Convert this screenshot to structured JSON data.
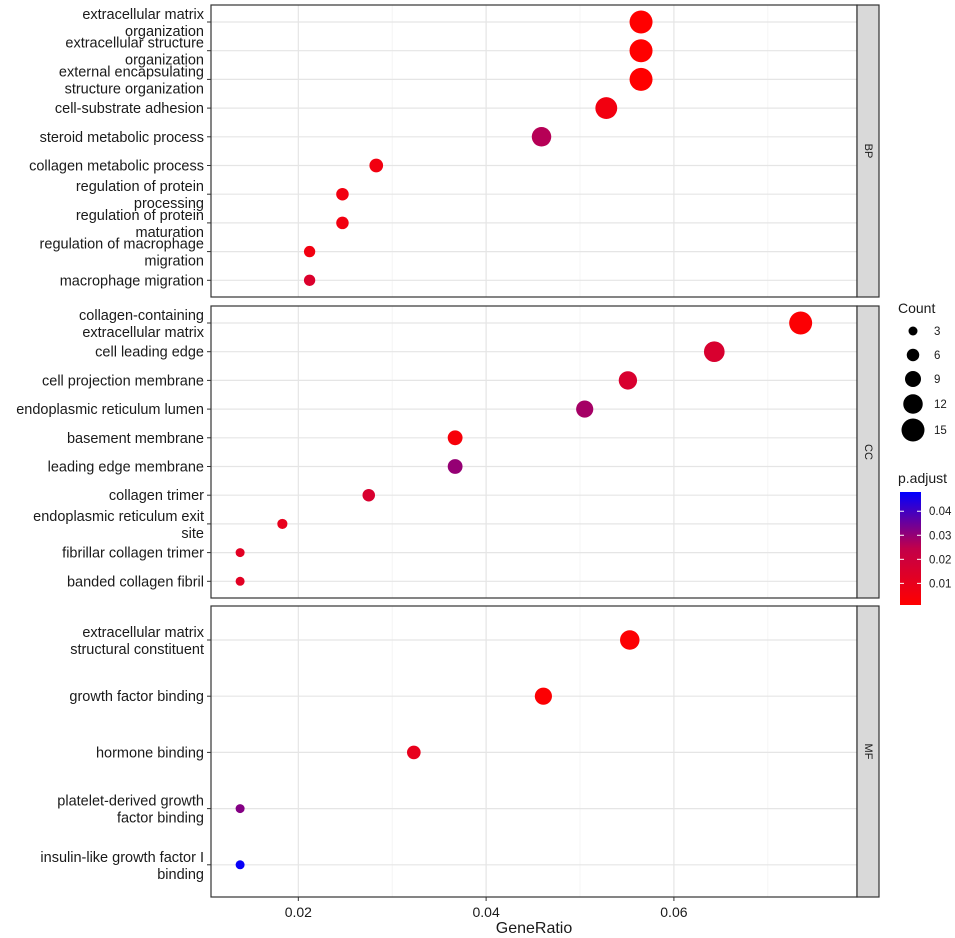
{
  "chart_data": {
    "type": "scatter",
    "xlabel": "GeneRatio",
    "xlim": [
      0.0107,
      0.0795
    ],
    "xticks": [
      0.02,
      0.04,
      0.06
    ],
    "xtick_labels": [
      "0.02",
      "0.04",
      "0.06"
    ],
    "facets": [
      {
        "name": "BP",
        "items": [
          {
            "label": [
              "extracellular matrix",
              "organization"
            ],
            "x": 0.0565,
            "count": 15,
            "p_adjust": 0.001
          },
          {
            "label": [
              "extracellular structure",
              "organization"
            ],
            "x": 0.0565,
            "count": 15,
            "p_adjust": 0.001
          },
          {
            "label": [
              "external encapsulating",
              "structure organization"
            ],
            "x": 0.0565,
            "count": 15,
            "p_adjust": 0.001
          },
          {
            "label": [
              "cell-substrate adhesion"
            ],
            "x": 0.0528,
            "count": 14,
            "p_adjust": 0.006
          },
          {
            "label": [
              "steroid metabolic process"
            ],
            "x": 0.0459,
            "count": 12,
            "p_adjust": 0.026
          },
          {
            "label": [
              "collagen metabolic process"
            ],
            "x": 0.0283,
            "count": 7,
            "p_adjust": 0.006
          },
          {
            "label": [
              "regulation of protein",
              "processing"
            ],
            "x": 0.0247,
            "count": 6,
            "p_adjust": 0.006
          },
          {
            "label": [
              "regulation of protein",
              "maturation"
            ],
            "x": 0.0247,
            "count": 6,
            "p_adjust": 0.006
          },
          {
            "label": [
              "regulation of macrophage",
              "migration"
            ],
            "x": 0.0212,
            "count": 5,
            "p_adjust": 0.006
          },
          {
            "label": [
              "macrophage migration"
            ],
            "x": 0.0212,
            "count": 5,
            "p_adjust": 0.015
          }
        ]
      },
      {
        "name": "CC",
        "items": [
          {
            "label": [
              "collagen-containing",
              "extracellular matrix"
            ],
            "x": 0.0735,
            "count": 15,
            "p_adjust": 0.002
          },
          {
            "label": [
              "cell leading edge"
            ],
            "x": 0.0643,
            "count": 13,
            "p_adjust": 0.016
          },
          {
            "label": [
              "cell projection membrane"
            ],
            "x": 0.0551,
            "count": 11,
            "p_adjust": 0.016
          },
          {
            "label": [
              "endoplasmic reticulum lumen"
            ],
            "x": 0.0505,
            "count": 10,
            "p_adjust": 0.028
          },
          {
            "label": [
              "basement membrane"
            ],
            "x": 0.0367,
            "count": 8,
            "p_adjust": 0.004
          },
          {
            "label": [
              "leading edge membrane"
            ],
            "x": 0.0367,
            "count": 8,
            "p_adjust": 0.03
          },
          {
            "label": [
              "collagen trimer"
            ],
            "x": 0.0275,
            "count": 6,
            "p_adjust": 0.016
          },
          {
            "label": [
              "endoplasmic reticulum exit",
              "site"
            ],
            "x": 0.0183,
            "count": 4,
            "p_adjust": 0.01
          },
          {
            "label": [
              "fibrillar collagen trimer"
            ],
            "x": 0.0138,
            "count": 3,
            "p_adjust": 0.012
          },
          {
            "label": [
              "banded collagen fibril"
            ],
            "x": 0.0138,
            "count": 3,
            "p_adjust": 0.012
          }
        ]
      },
      {
        "name": "MF",
        "items": [
          {
            "label": [
              "extracellular matrix",
              "structural constituent"
            ],
            "x": 0.0553,
            "count": 12,
            "p_adjust": 0.002
          },
          {
            "label": [
              "growth factor binding"
            ],
            "x": 0.0461,
            "count": 10,
            "p_adjust": 0.002
          },
          {
            "label": [
              "hormone binding"
            ],
            "x": 0.0323,
            "count": 7,
            "p_adjust": 0.01
          },
          {
            "label": [
              "platelet-derived growth",
              "factor binding"
            ],
            "x": 0.0138,
            "count": 3,
            "p_adjust": 0.032
          },
          {
            "label": [
              "insulin-like growth factor I",
              "binding"
            ],
            "x": 0.0138,
            "count": 3,
            "p_adjust": 0.047
          }
        ]
      }
    ],
    "size_legend": {
      "title": "Count",
      "values": [
        3,
        6,
        9,
        12,
        15
      ]
    },
    "color_legend": {
      "title": "p.adjust",
      "ticks": [
        0.04,
        0.03,
        0.02,
        0.01
      ],
      "tick_labels": [
        "0.04",
        "0.03",
        "0.02",
        "0.01"
      ],
      "range": [
        0.001,
        0.048
      ],
      "low_color": "#ff0000",
      "high_color": "#0000ff"
    },
    "colors": {
      "panel_border": "#333333",
      "grid": "#e5e5e5",
      "strip": "#d9d9d9"
    }
  }
}
